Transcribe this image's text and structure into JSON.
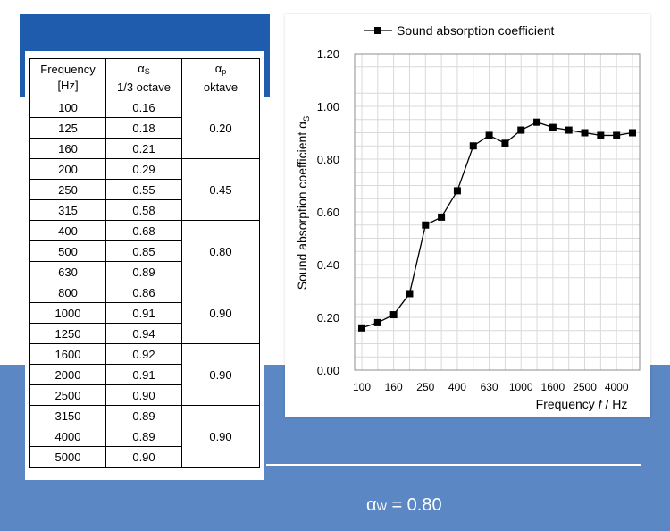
{
  "table": {
    "headers": {
      "frequency": [
        "Frequency",
        "[Hz]"
      ],
      "alpha_s_symbol": "α",
      "alpha_s_sub": "S",
      "alpha_s_unit": "1/3 octave",
      "alpha_p_symbol": "α",
      "alpha_p_sub": "p",
      "alpha_p_unit": "oktave"
    },
    "rows": [
      {
        "f": "100",
        "as": "0.16"
      },
      {
        "f": "125",
        "as": "0.18"
      },
      {
        "f": "160",
        "as": "0.21"
      },
      {
        "f": "200",
        "as": "0.29"
      },
      {
        "f": "250",
        "as": "0.55"
      },
      {
        "f": "315",
        "as": "0.58"
      },
      {
        "f": "400",
        "as": "0.68"
      },
      {
        "f": "500",
        "as": "0.85"
      },
      {
        "f": "630",
        "as": "0.89"
      },
      {
        "f": "800",
        "as": "0.86"
      },
      {
        "f": "1000",
        "as": "0.91"
      },
      {
        "f": "1250",
        "as": "0.94"
      },
      {
        "f": "1600",
        "as": "0.92"
      },
      {
        "f": "2000",
        "as": "0.91"
      },
      {
        "f": "2500",
        "as": "0.90"
      },
      {
        "f": "3150",
        "as": "0.89"
      },
      {
        "f": "4000",
        "as": "0.89"
      },
      {
        "f": "5000",
        "as": "0.90"
      }
    ],
    "octave_values": [
      "0.20",
      "0.45",
      "0.80",
      "0.90",
      "0.90",
      "0.90"
    ]
  },
  "chart_data": {
    "type": "line",
    "title": "",
    "legend": "top",
    "series": [
      {
        "name": "Sound absorption coefficient",
        "x": [
          100,
          125,
          160,
          200,
          250,
          315,
          400,
          500,
          630,
          800,
          1000,
          1250,
          1600,
          2000,
          2500,
          3150,
          4000,
          5000
        ],
        "values": [
          0.16,
          0.18,
          0.21,
          0.29,
          0.55,
          0.58,
          0.68,
          0.85,
          0.89,
          0.86,
          0.91,
          0.94,
          0.92,
          0.91,
          0.9,
          0.89,
          0.89,
          0.9
        ]
      }
    ],
    "xlabel_main": "Frequency ",
    "xlabel_italic": "f",
    "xlabel_unit": " / Hz",
    "ylabel": "Sound absorption coefficient α",
    "ylabel_sub": "S",
    "xticks": [
      "100",
      "160",
      "250",
      "400",
      "630",
      "1000",
      "1600",
      "2500",
      "4000"
    ],
    "yticks": [
      "0.00",
      "0.20",
      "0.40",
      "0.60",
      "0.80",
      "1.00",
      "1.20"
    ],
    "ylim": [
      0,
      1.2
    ],
    "grid": true,
    "marker": "square",
    "color": "#000000"
  },
  "weighted": {
    "symbol": "α",
    "sub": "W",
    "value_text": " = 0.80"
  }
}
